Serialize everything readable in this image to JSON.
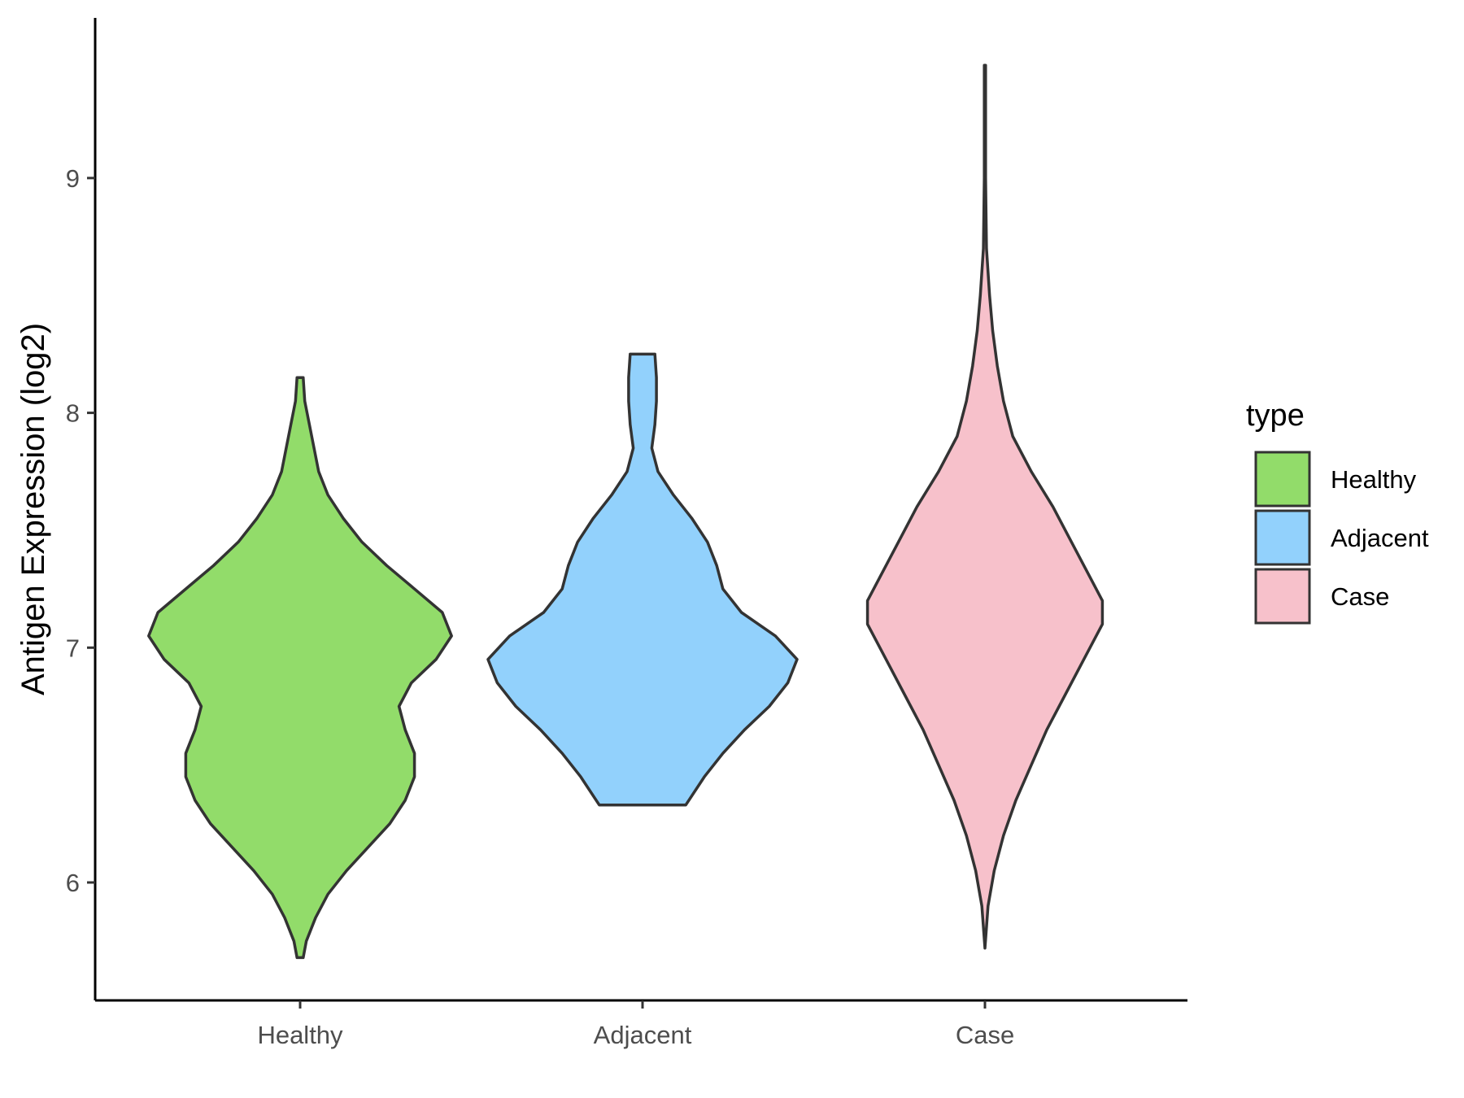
{
  "chart_data": {
    "type": "violin",
    "title": "",
    "xlabel": "",
    "ylabel": "Antigen Expression (log2)",
    "ylim": [
      5.5,
      9.7
    ],
    "yticks": [
      6,
      7,
      8,
      9
    ],
    "grid": false,
    "categories": [
      "Healthy",
      "Adjacent",
      "Case"
    ],
    "legend": {
      "title": "type",
      "position": "right",
      "entries": [
        "Healthy",
        "Adjacent",
        "Case"
      ]
    },
    "series": [
      {
        "name": "Healthy",
        "color": "#92DC6A",
        "min": 5.68,
        "max": 8.15,
        "half_width": [
          [
            5.68,
            0.01
          ],
          [
            5.75,
            0.02
          ],
          [
            5.85,
            0.05
          ],
          [
            5.95,
            0.09
          ],
          [
            6.05,
            0.15
          ],
          [
            6.15,
            0.22
          ],
          [
            6.25,
            0.29
          ],
          [
            6.35,
            0.34
          ],
          [
            6.45,
            0.37
          ],
          [
            6.55,
            0.37
          ],
          [
            6.65,
            0.34
          ],
          [
            6.75,
            0.32
          ],
          [
            6.85,
            0.36
          ],
          [
            6.95,
            0.44
          ],
          [
            7.05,
            0.49
          ],
          [
            7.15,
            0.46
          ],
          [
            7.25,
            0.37
          ],
          [
            7.35,
            0.28
          ],
          [
            7.45,
            0.2
          ],
          [
            7.55,
            0.14
          ],
          [
            7.65,
            0.09
          ],
          [
            7.75,
            0.06
          ],
          [
            7.85,
            0.045
          ],
          [
            7.95,
            0.03
          ],
          [
            8.05,
            0.015
          ],
          [
            8.15,
            0.01
          ]
        ]
      },
      {
        "name": "Adjacent",
        "color": "#92D1FC",
        "min": 6.33,
        "max": 8.25,
        "half_width": [
          [
            6.33,
            0.14
          ],
          [
            6.45,
            0.2
          ],
          [
            6.55,
            0.26
          ],
          [
            6.65,
            0.33
          ],
          [
            6.75,
            0.41
          ],
          [
            6.85,
            0.47
          ],
          [
            6.95,
            0.5
          ],
          [
            7.05,
            0.43
          ],
          [
            7.15,
            0.32
          ],
          [
            7.25,
            0.26
          ],
          [
            7.35,
            0.24
          ],
          [
            7.45,
            0.21
          ],
          [
            7.55,
            0.16
          ],
          [
            7.65,
            0.1
          ],
          [
            7.75,
            0.05
          ],
          [
            7.85,
            0.03
          ],
          [
            7.95,
            0.04
          ],
          [
            8.05,
            0.045
          ],
          [
            8.15,
            0.045
          ],
          [
            8.25,
            0.04
          ]
        ]
      },
      {
        "name": "Case",
        "color": "#F7C1CB",
        "min": 5.72,
        "max": 9.48,
        "half_width": [
          [
            5.72,
            0.0
          ],
          [
            5.9,
            0.01
          ],
          [
            6.05,
            0.03
          ],
          [
            6.2,
            0.06
          ],
          [
            6.35,
            0.1
          ],
          [
            6.5,
            0.15
          ],
          [
            6.65,
            0.2
          ],
          [
            6.8,
            0.26
          ],
          [
            6.95,
            0.32
          ],
          [
            7.1,
            0.38
          ],
          [
            7.2,
            0.38
          ],
          [
            7.3,
            0.34
          ],
          [
            7.45,
            0.28
          ],
          [
            7.6,
            0.22
          ],
          [
            7.75,
            0.15
          ],
          [
            7.9,
            0.09
          ],
          [
            8.05,
            0.06
          ],
          [
            8.2,
            0.04
          ],
          [
            8.35,
            0.025
          ],
          [
            8.5,
            0.015
          ],
          [
            8.7,
            0.005
          ],
          [
            9.0,
            0.002
          ],
          [
            9.48,
            0.002
          ]
        ]
      }
    ]
  }
}
